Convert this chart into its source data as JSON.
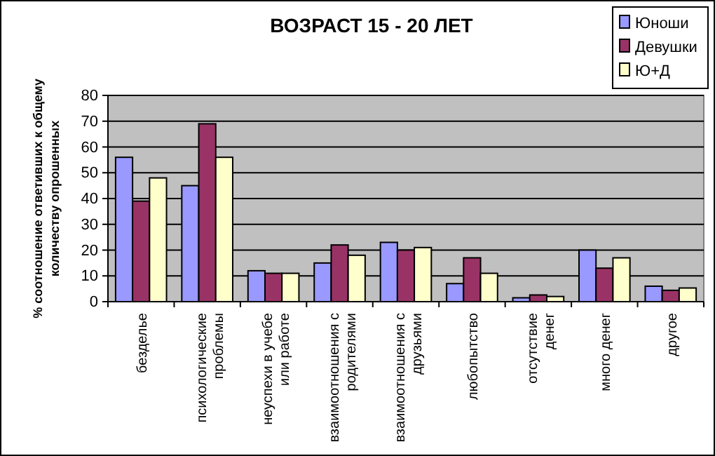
{
  "chart_data": {
    "type": "bar",
    "title": "ВОЗРАСТ 15 - 20 ЛЕТ",
    "ylabel": "% соотношение ответивших к общему количеству опрошенных",
    "categories": [
      "безделье",
      "психологические проблемы",
      "неуспехи в учебе или работе",
      "взаимоотношения с родителями",
      "взаимоотношения с друзьями",
      "любопытство",
      "отсутствие денег",
      "много денег",
      "другое"
    ],
    "series": [
      {
        "name": "Юноши",
        "color": "#9999ff",
        "values": [
          56,
          45,
          12,
          15,
          23,
          7,
          1.5,
          20,
          6
        ]
      },
      {
        "name": "Девушки",
        "color": "#993366",
        "values": [
          39,
          69,
          11,
          22,
          20,
          17,
          2.6,
          13,
          4.4
        ]
      },
      {
        "name": "Ю+Д",
        "color": "#ffffcc",
        "values": [
          48,
          56,
          11,
          18,
          21,
          11,
          2,
          17,
          5.3
        ]
      }
    ],
    "ylim": [
      0,
      80
    ],
    "yticks": [
      0,
      10,
      20,
      30,
      40,
      50,
      60,
      70,
      80
    ],
    "grid": "y",
    "legend": "top right"
  }
}
